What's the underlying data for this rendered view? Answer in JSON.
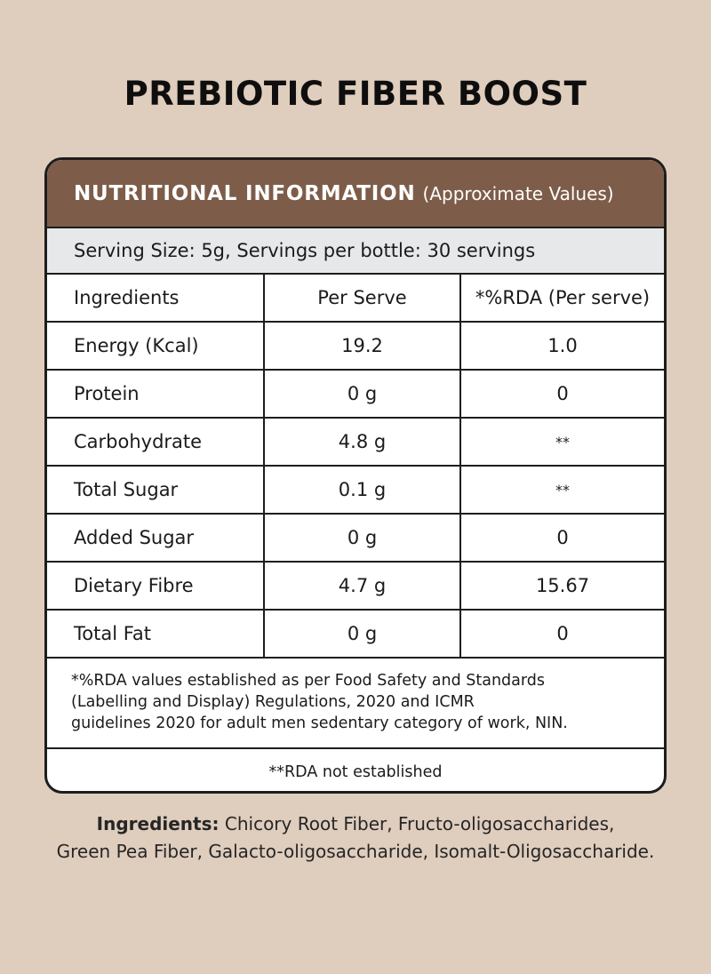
{
  "title": "PREBIOTIC FIBER BOOST",
  "header": {
    "main": "NUTRITIONAL INFORMATION",
    "sub": "(Approximate Values)"
  },
  "serving": "Serving Size: 5g, Servings per bottle: 30 servings",
  "table": {
    "columns": [
      "Ingredients",
      "Per Serve",
      "*%RDA (Per serve)"
    ],
    "rows": [
      {
        "name": "Energy (Kcal)",
        "per_serve": "19.2",
        "rda": "1.0"
      },
      {
        "name": "Protein",
        "per_serve": "0 g",
        "rda": "0"
      },
      {
        "name": "Carbohydrate",
        "per_serve": "4.8 g",
        "rda": "**"
      },
      {
        "name": "Total Sugar",
        "per_serve": "0.1 g",
        "rda": "**"
      },
      {
        "name": "Added Sugar",
        "per_serve": "0 g",
        "rda": "0"
      },
      {
        "name": "Dietary Fibre",
        "per_serve": "4.7 g",
        "rda": "15.67"
      },
      {
        "name": "Total Fat",
        "per_serve": "0 g",
        "rda": "0"
      }
    ]
  },
  "footnote": [
    "*%RDA values established as per Food Safety and Standards",
    "(Labelling and Display) Regulations, 2020 and ICMR",
    "guidelines 2020 for adult men sedentary category of work, NIN."
  ],
  "rda_note": "**RDA not established",
  "ingredients": {
    "label": "Ingredients:",
    "line1": " Chicory Root Fiber, Fructo-oligosaccharides,",
    "line2": "Green Pea Fiber, Galacto-oligosaccharide, Isomalt-Oligosaccharide."
  },
  "colors": {
    "background": "#dfcdbd",
    "header": "#7d5d49",
    "serving_row": "#e7e8e9"
  }
}
